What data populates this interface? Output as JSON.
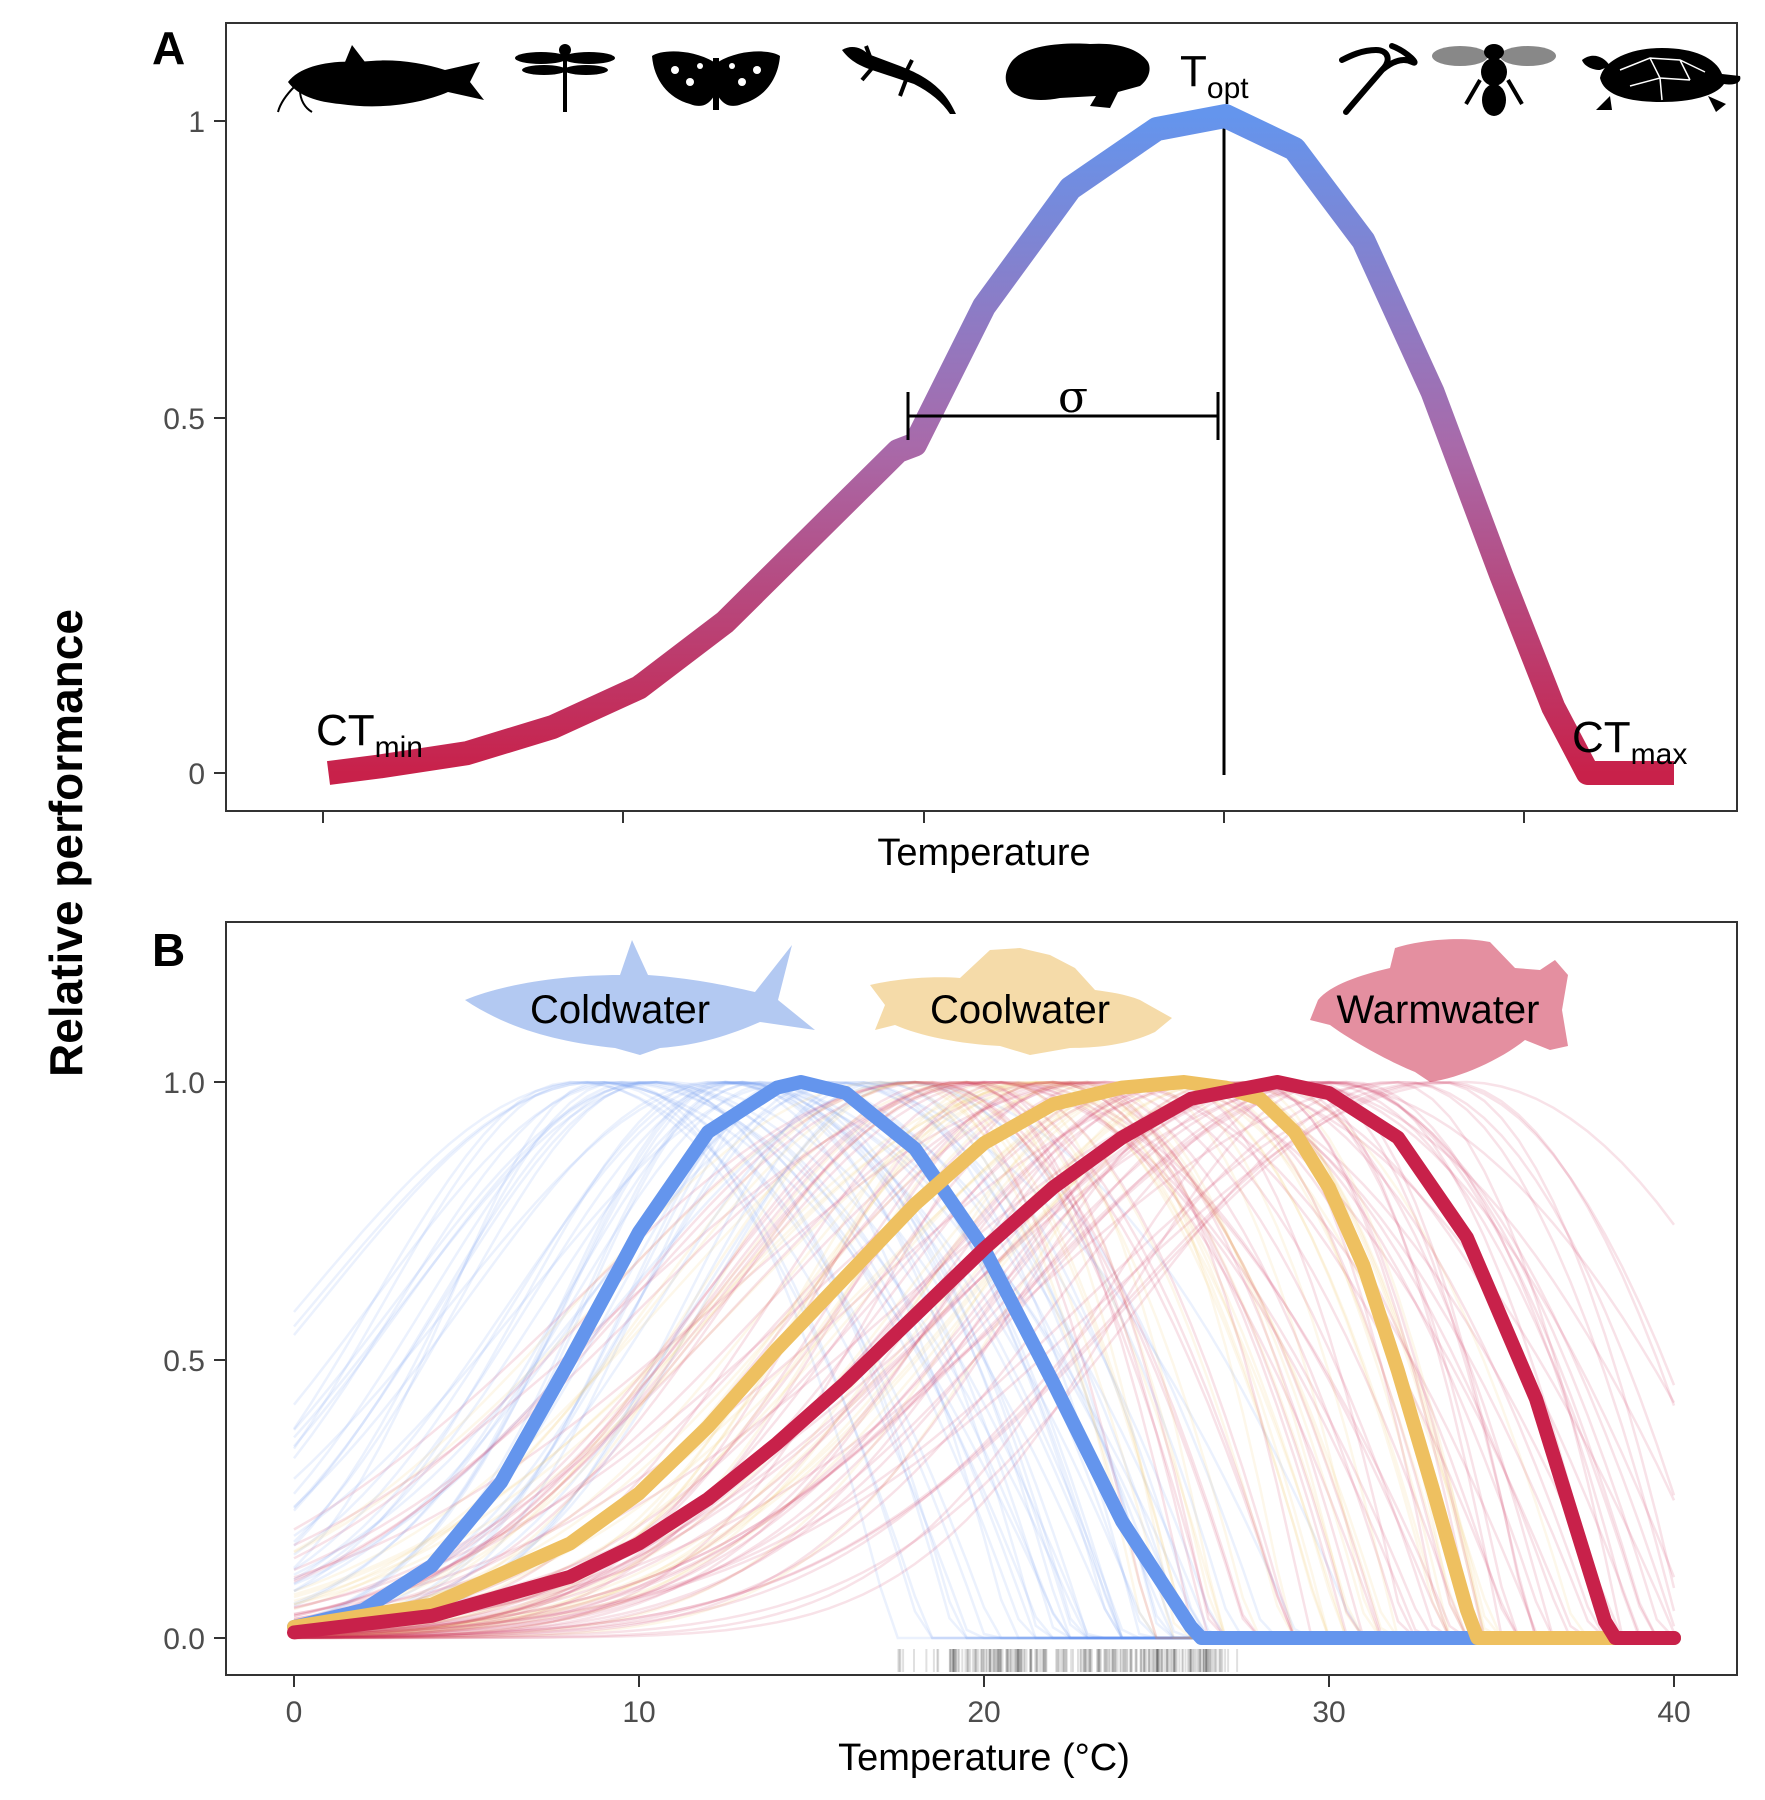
{
  "y_axis_title": "Relative performance",
  "panel_a": {
    "label": "A",
    "xlabel": "Temperature",
    "y_ticks": [
      "0",
      "0.5",
      "1"
    ],
    "annotations": {
      "ctmin_main": "CT",
      "ctmin_sub": "min",
      "ctmax_main": "CT",
      "ctmax_sub": "max",
      "topt_main": "T",
      "topt_sub": "opt",
      "sigma": "σ"
    },
    "icons": [
      "catfish-icon",
      "dragonfly-icon",
      "butterfly-icon",
      "lizard-icon",
      "frog-icon",
      "snake-icon",
      "bee-icon",
      "turtle-icon"
    ]
  },
  "panel_b": {
    "label": "B",
    "xlabel": "Temperature (°C)",
    "x_ticks": [
      "0",
      "10",
      "20",
      "30",
      "40"
    ],
    "y_ticks": [
      "0.0",
      "0.5",
      "1.0"
    ],
    "groups": [
      "Coldwater",
      "Coolwater",
      "Warmwater"
    ]
  },
  "colors": {
    "coldwater": "#6495ED",
    "coolwater": "#EEC060",
    "warmwater": "#C8214A",
    "coldwater_icon": "#B3C9F2",
    "coolwater_icon": "#F5DBA9",
    "warmwater_icon": "#E48FA0"
  },
  "chart_data": [
    {
      "type": "line",
      "panel": "A",
      "title": "",
      "xlabel": "Temperature",
      "ylabel": "Relative performance",
      "ylim": [
        0,
        1
      ],
      "x_ticks_labeled": false,
      "parameters": {
        "CTmin": 2.5,
        "Topt": 27,
        "sigma": 9,
        "CTmax": 37.5
      },
      "series": [
        {
          "x": [
            1,
            2.5,
            5,
            7.5,
            10,
            12.5,
            15,
            17.5,
            18,
            20,
            22.5,
            25,
            27,
            29,
            31,
            33,
            35,
            36.5,
            37.5,
            40
          ],
          "values": [
            0,
            0.01,
            0.03,
            0.07,
            0.13,
            0.23,
            0.36,
            0.49,
            0.5,
            0.71,
            0.89,
            0.98,
            1.0,
            0.95,
            0.81,
            0.58,
            0.3,
            0.1,
            0.0,
            0.0
          ]
        }
      ],
      "grid": false
    },
    {
      "type": "line",
      "panel": "B",
      "title": "",
      "xlabel": "Temperature (°C)",
      "ylabel": "Relative performance",
      "xlim": [
        0,
        40
      ],
      "ylim": [
        0,
        1
      ],
      "x_ticks": [
        0,
        10,
        20,
        30,
        40
      ],
      "y_ticks": [
        0.0,
        0.5,
        1.0
      ],
      "grid": false,
      "series": [
        {
          "name": "Coldwater",
          "x": [
            0,
            2,
            4,
            6,
            8,
            10,
            12,
            14,
            14.7,
            16,
            18,
            20,
            22,
            24,
            26,
            26.3,
            30,
            34,
            38,
            40
          ],
          "values": [
            0.02,
            0.05,
            0.13,
            0.28,
            0.5,
            0.73,
            0.91,
            0.99,
            1.0,
            0.98,
            0.88,
            0.7,
            0.46,
            0.21,
            0.02,
            0.0,
            0.0,
            0.0,
            0.0,
            0.0
          ]
        },
        {
          "name": "Coolwater",
          "x": [
            0,
            4,
            8,
            10,
            12,
            14,
            16,
            18,
            20,
            22,
            24,
            25.8,
            27,
            28,
            29,
            30,
            31,
            32,
            33,
            34,
            34.3,
            38,
            40
          ],
          "values": [
            0.02,
            0.06,
            0.17,
            0.26,
            0.38,
            0.52,
            0.65,
            0.78,
            0.89,
            0.96,
            0.99,
            1.0,
            0.99,
            0.97,
            0.91,
            0.81,
            0.67,
            0.48,
            0.27,
            0.05,
            0.0,
            0.0,
            0.0
          ]
        },
        {
          "name": "Warmwater",
          "x": [
            0,
            4,
            8,
            10,
            12,
            14,
            16,
            18,
            20,
            22,
            24,
            26,
            28.5,
            30,
            32,
            34,
            36,
            37,
            38,
            38.3,
            40
          ],
          "values": [
            0.01,
            0.04,
            0.11,
            0.17,
            0.25,
            0.35,
            0.46,
            0.58,
            0.7,
            0.81,
            0.9,
            0.97,
            1.0,
            0.98,
            0.9,
            0.72,
            0.43,
            0.23,
            0.03,
            0.0,
            0.0
          ]
        }
      ],
      "rug": {
        "description": "observed temperatures",
        "xmin": 17.5,
        "xmax": 27.5,
        "dense_from": 19,
        "dense_to": 27
      }
    }
  ]
}
